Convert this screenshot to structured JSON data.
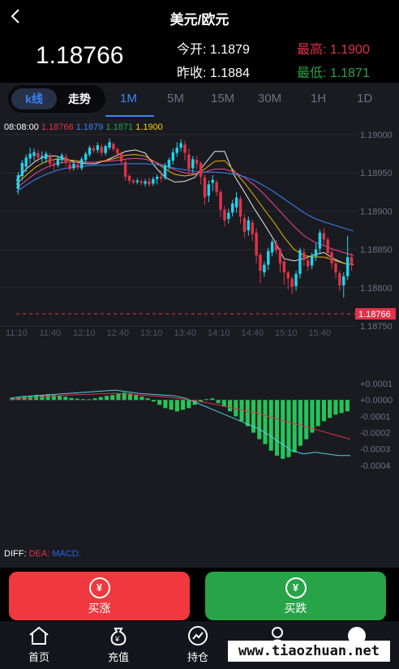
{
  "header": {
    "title": "美元/欧元"
  },
  "quote": {
    "last_price": "1.18766",
    "open_label": "今开:",
    "open_value": "1.1879",
    "prev_close_label": "昨收:",
    "prev_close_value": "1.1884",
    "high_label": "最高:",
    "high_value": "1.1900",
    "low_label": "最低:",
    "low_value": "1.1871"
  },
  "tabs": {
    "kline_label": "k线",
    "trend_label": "走势",
    "timeframes": [
      "1M",
      "5M",
      "15M",
      "30M",
      "1H",
      "1D"
    ],
    "active_timeframe": "1M"
  },
  "legend": {
    "time": "08:08:00",
    "close": "1.18766",
    "open": "1.1879",
    "low": "1.1871",
    "high": "1.1900"
  },
  "macd_legend": {
    "diff": "DIFF:",
    "dea": "DEA:",
    "macd": "MACD:"
  },
  "colors": {
    "up": "#22d3ee",
    "down": "#e0334a",
    "buy": "#f1383e",
    "sell": "#27a447"
  },
  "chart_data": [
    {
      "type": "candlestick",
      "y_ticks": [
        "1.19000",
        "1.18950",
        "1.18900",
        "1.18850",
        "1.18800",
        "1.18750"
      ],
      "x_ticks": [
        "11:10",
        "11:40",
        "12:10",
        "12:40",
        "13:10",
        "13:40",
        "14:10",
        "14:40",
        "15:10",
        "15:40"
      ],
      "ylim": [
        1.1875,
        1.19
      ],
      "current_price_label": "1.18766",
      "candles": [
        [
          1.18929,
          1.18947,
          1.18922,
          1.18951
        ],
        [
          1.18946,
          1.18963,
          1.1894,
          1.18967
        ],
        [
          1.18958,
          1.1897,
          1.18951,
          1.18974
        ],
        [
          1.18969,
          1.18975,
          1.18962,
          1.18983
        ],
        [
          1.18972,
          1.18977,
          1.18966,
          1.18982
        ],
        [
          1.18976,
          1.1897,
          1.18964,
          1.1898
        ],
        [
          1.1897,
          1.18972,
          1.18962,
          1.18978
        ],
        [
          1.18968,
          1.18975,
          1.18963,
          1.18978
        ],
        [
          1.18972,
          1.18962,
          1.18957,
          1.18976
        ],
        [
          1.18962,
          1.18959,
          1.18954,
          1.18966
        ],
        [
          1.1896,
          1.18969,
          1.18957,
          1.18972
        ],
        [
          1.18967,
          1.18973,
          1.18963,
          1.18976
        ],
        [
          1.18971,
          1.18963,
          1.18958,
          1.18975
        ],
        [
          1.18961,
          1.18955,
          1.18952,
          1.18965
        ],
        [
          1.18956,
          1.18962,
          1.18953,
          1.18965
        ],
        [
          1.18961,
          1.18957,
          1.18954,
          1.18963
        ],
        [
          1.18956,
          1.18968,
          1.18953,
          1.18971
        ],
        [
          1.18967,
          1.18975,
          1.18963,
          1.18978
        ],
        [
          1.18974,
          1.18983,
          1.18971,
          1.18986
        ],
        [
          1.18982,
          1.18979,
          1.18976,
          1.18986
        ],
        [
          1.1898,
          1.18986,
          1.18976,
          1.1899
        ],
        [
          1.18984,
          1.18976,
          1.18972,
          1.18988
        ],
        [
          1.18976,
          1.18985,
          1.18973,
          1.18987
        ],
        [
          1.18983,
          1.1899,
          1.1898,
          1.18995
        ],
        [
          1.18988,
          1.18981,
          1.18978,
          1.1899
        ],
        [
          1.18981,
          1.18975,
          1.1897,
          1.18983
        ],
        [
          1.18975,
          1.18965,
          1.1896,
          1.18978
        ],
        [
          1.18964,
          1.18945,
          1.1894,
          1.18967
        ],
        [
          1.18946,
          1.1894,
          1.18936,
          1.18948
        ],
        [
          1.1894,
          1.18938,
          1.18935,
          1.18942
        ],
        [
          1.18938,
          1.1894,
          1.18935,
          1.18943
        ],
        [
          1.18939,
          1.18937,
          1.18934,
          1.18942
        ],
        [
          1.18936,
          1.18939,
          1.18932,
          1.18942
        ],
        [
          1.18939,
          1.18935,
          1.18932,
          1.18944
        ],
        [
          1.18936,
          1.18942,
          1.18933,
          1.18945
        ],
        [
          1.18942,
          1.18945,
          1.18935,
          1.18948
        ],
        [
          1.18945,
          1.18943,
          1.18938,
          1.18953
        ],
        [
          1.18944,
          1.1896,
          1.18941,
          1.18963
        ],
        [
          1.18958,
          1.18967,
          1.18954,
          1.1897
        ],
        [
          1.18966,
          1.18977,
          1.18961,
          1.18982
        ],
        [
          1.18976,
          1.18983,
          1.18971,
          1.1899
        ],
        [
          1.18983,
          1.18989,
          1.18978,
          1.18994
        ],
        [
          1.18987,
          1.18976,
          1.18966,
          1.18992
        ],
        [
          1.18974,
          1.18955,
          1.18948,
          1.18982
        ],
        [
          1.18956,
          1.18968,
          1.1895,
          1.18972
        ],
        [
          1.18967,
          1.18962,
          1.18955,
          1.18972
        ],
        [
          1.18963,
          1.18945,
          1.18935,
          1.18965
        ],
        [
          1.18944,
          1.18918,
          1.18908,
          1.18948
        ],
        [
          1.1892,
          1.18935,
          1.18912,
          1.1894
        ],
        [
          1.18937,
          1.18941,
          1.18926,
          1.18947
        ],
        [
          1.18938,
          1.18925,
          1.1892,
          1.18941
        ],
        [
          1.18925,
          1.18902,
          1.18892,
          1.18928
        ],
        [
          1.18902,
          1.18888,
          1.1888,
          1.18907
        ],
        [
          1.1889,
          1.18898,
          1.18884,
          1.18903
        ],
        [
          1.18898,
          1.1891,
          1.18893,
          1.18915
        ],
        [
          1.18905,
          1.18918,
          1.18898,
          1.18925
        ],
        [
          1.18916,
          1.18893,
          1.18884,
          1.1892
        ],
        [
          1.18891,
          1.18873,
          1.18865,
          1.18896
        ],
        [
          1.18875,
          1.18888,
          1.18868,
          1.18893
        ],
        [
          1.18885,
          1.1887,
          1.18861,
          1.18889
        ],
        [
          1.18872,
          1.18842,
          1.18832,
          1.18878
        ],
        [
          1.18843,
          1.18822,
          1.18806,
          1.18846
        ],
        [
          1.1882,
          1.1883,
          1.18814,
          1.18834
        ],
        [
          1.1883,
          1.18848,
          1.18823,
          1.18852
        ],
        [
          1.18846,
          1.1886,
          1.18841,
          1.18863
        ],
        [
          1.18858,
          1.18849,
          1.18844,
          1.18862
        ],
        [
          1.1885,
          1.18832,
          1.1882,
          1.18852
        ],
        [
          1.18834,
          1.1882,
          1.18804,
          1.18836
        ],
        [
          1.1882,
          1.18812,
          1.18798,
          1.18822
        ],
        [
          1.18812,
          1.18801,
          1.18792,
          1.18815
        ],
        [
          1.18802,
          1.18818,
          1.18796,
          1.18822
        ],
        [
          1.18818,
          1.18849,
          1.18812,
          1.18852
        ],
        [
          1.18846,
          1.18836,
          1.18828,
          1.18851
        ],
        [
          1.18836,
          1.18828,
          1.18822,
          1.1884
        ],
        [
          1.18829,
          1.18842,
          1.18824,
          1.18846
        ],
        [
          1.18841,
          1.1885,
          1.18835,
          1.18858
        ],
        [
          1.18851,
          1.18872,
          1.18844,
          1.18876
        ],
        [
          1.18871,
          1.18863,
          1.18854,
          1.18878
        ],
        [
          1.18863,
          1.18845,
          1.18839,
          1.18866
        ],
        [
          1.18846,
          1.18832,
          1.18825,
          1.18849
        ],
        [
          1.18832,
          1.1882,
          1.18812,
          1.18834
        ],
        [
          1.18819,
          1.18803,
          1.18796,
          1.18822
        ],
        [
          1.18803,
          1.18815,
          1.18787,
          1.1882
        ],
        [
          1.18815,
          1.1884,
          1.1881,
          1.18868
        ],
        [
          1.1884,
          1.1883,
          1.18822,
          1.18845
        ]
      ],
      "ma_series": [
        {
          "color": "#e6e6e6",
          "values": [
            1.1894,
            1.18955,
            1.18966,
            1.18972,
            1.18972,
            1.18968,
            1.18964,
            1.18962,
            1.18962,
            1.18966,
            1.18972,
            1.18978,
            1.1898,
            1.18976,
            1.18958,
            1.18944,
            1.18938,
            1.18939,
            1.18944,
            1.18962,
            1.18978,
            1.18978,
            1.18946,
            1.18925,
            1.18903,
            1.18883,
            1.18862,
            1.18838,
            1.18835,
            1.18838,
            1.18843,
            1.18846,
            1.18838,
            1.18832,
            1.1883
          ]
        },
        {
          "color": "#eab308",
          "values": [
            1.18935,
            1.18947,
            1.18958,
            1.18965,
            1.18968,
            1.18967,
            1.18966,
            1.18964,
            1.18964,
            1.18966,
            1.18969,
            1.18973,
            1.18974,
            1.18972,
            1.18964,
            1.18955,
            1.18948,
            1.18946,
            1.18948,
            1.18955,
            1.18965,
            1.18966,
            1.18952,
            1.18937,
            1.1892,
            1.18902,
            1.18885,
            1.18866,
            1.1885,
            1.18842,
            1.1884,
            1.1884,
            1.18836,
            1.18832,
            1.1883
          ]
        },
        {
          "color": "#ec4899",
          "values": [
            1.1893,
            1.1894,
            1.1895,
            1.18957,
            1.18962,
            1.18964,
            1.18964,
            1.18964,
            1.18964,
            1.18965,
            1.18966,
            1.18968,
            1.18969,
            1.18968,
            1.18964,
            1.18959,
            1.18954,
            1.1895,
            1.18949,
            1.18951,
            1.18955,
            1.18955,
            1.18951,
            1.18944,
            1.18934,
            1.18922,
            1.18908,
            1.18894,
            1.1888,
            1.18868,
            1.1886,
            1.18855,
            1.1885,
            1.18846,
            1.18842
          ]
        },
        {
          "color": "#3b82f6",
          "values": [
            1.18925,
            1.18934,
            1.18942,
            1.18948,
            1.18953,
            1.18956,
            1.18958,
            1.18959,
            1.1896,
            1.1896,
            1.18961,
            1.18962,
            1.18962,
            1.18962,
            1.18961,
            1.18959,
            1.18956,
            1.18954,
            1.18952,
            1.18951,
            1.18951,
            1.1895,
            1.18948,
            1.18945,
            1.1894,
            1.18933,
            1.18925,
            1.18916,
            1.18907,
            1.18898,
            1.18891,
            1.18886,
            1.18882,
            1.18878,
            1.18874
          ]
        }
      ]
    },
    {
      "type": "macd",
      "y_ticks": [
        "+0.0001",
        "+0.0000",
        "-0.0001",
        "-0.0002",
        "-0.0003",
        "-0.0004"
      ],
      "ylim": [
        -0.00045,
        0.00012
      ],
      "histogram": [
        1e-05,
        1.5e-05,
        2e-05,
        2.5e-05,
        3e-05,
        3e-05,
        3.5e-05,
        3e-05,
        2.5e-05,
        2e-05,
        1.2e-05,
        8e-06,
        5e-06,
        4e-06,
        1e-05,
        1.8e-05,
        2.5e-05,
        3e-05,
        4e-05,
        4.5e-05,
        4e-05,
        3e-05,
        2e-05,
        1e-05,
        -1e-05,
        -3e-05,
        -5e-05,
        -6e-05,
        -7e-05,
        -6e-05,
        -5e-05,
        -3e-05,
        -1e-05,
        5e-06,
        1e-05,
        -2e-05,
        -4e-05,
        -7e-05,
        -0.0001,
        -0.00013,
        -0.00016,
        -0.0002,
        -0.00024,
        -0.00027,
        -0.00031,
        -0.00034,
        -0.00036,
        -0.00035,
        -0.00032,
        -0.00028,
        -0.00024,
        -0.0002,
        -0.00016,
        -0.00013,
        -0.00011,
        -9e-05,
        -8e-05,
        -7e-05
      ],
      "diff": [
        1e-05,
        2e-05,
        2.5e-05,
        3e-05,
        3.5e-05,
        4e-05,
        4.5e-05,
        5e-05,
        5.5e-05,
        6e-05,
        5e-05,
        4e-05,
        3.5e-05,
        3e-05,
        2.5e-05,
        1e-05,
        -2e-05,
        -5e-05,
        -8e-05,
        -0.00011,
        -0.00014,
        -0.00017,
        -0.00021,
        -0.00026,
        -0.00031,
        -0.00033,
        -0.00032,
        -0.00033,
        -0.00034,
        -0.00034
      ],
      "dea": [
        0.0,
        8e-06,
        1.5e-05,
        2e-05,
        2.5e-05,
        3e-05,
        3.3e-05,
        3.5e-05,
        3.8e-05,
        4e-05,
        3.5e-05,
        3e-05,
        2.5e-05,
        2e-05,
        1.2e-05,
        4e-06,
        -8e-06,
        -2e-05,
        -3.5e-05,
        -5e-05,
        -6.5e-05,
        -8e-05,
        -0.0001,
        -0.00012,
        -0.00014,
        -0.00016,
        -0.00018,
        -0.0002,
        -0.00022,
        -0.00024
      ]
    }
  ],
  "actions": {
    "buy_label": "买涨",
    "sell_label": "买跌"
  },
  "nav": [
    {
      "label": "首页",
      "icon": "home-icon"
    },
    {
      "label": "充值",
      "icon": "money-bag-icon"
    },
    {
      "label": "持仓",
      "icon": "chart-icon"
    },
    {
      "label": "",
      "icon": "user-icon"
    },
    {
      "label": "",
      "icon": "service-icon"
    }
  ],
  "watermark": "www.tiaozhuan.net"
}
